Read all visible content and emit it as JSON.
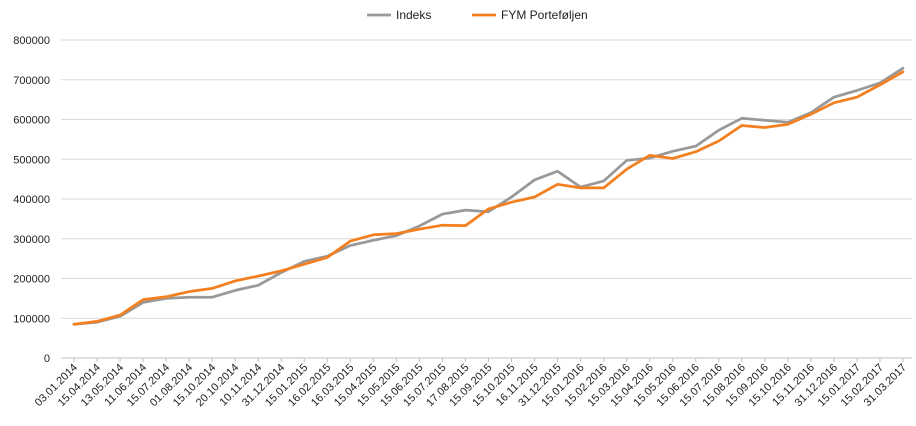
{
  "chart_data": {
    "type": "line",
    "title": "",
    "xlabel": "",
    "ylabel": "",
    "ylim": [
      0,
      800000
    ],
    "yticks": [
      "0",
      "100000",
      "200000",
      "300000",
      "400000",
      "500000",
      "600000",
      "700000",
      "800000"
    ],
    "grid": "horizontal",
    "legend_position": "top",
    "categories": [
      "03.01.2014",
      "15.04.2014",
      "13.05.2014",
      "11.06.2014",
      "15.07.2014",
      "01.08.2014",
      "15.10.2014",
      "20.10.2014",
      "10.11.2014",
      "31.12.2014",
      "15.01.2015",
      "16.02.2015",
      "16.03.2015",
      "15.04.2015",
      "15.05.2015",
      "15.06.2015",
      "15.07.2015",
      "17.08.2015",
      "15.09.2015",
      "15.10.2015",
      "16.11.2015",
      "31.12.2015",
      "15.01.2016",
      "15.02.2016",
      "15.03.2016",
      "15.04.2016",
      "15.05.2016",
      "15.06.2016",
      "15.07.2016",
      "15.08.2016",
      "15.09.2016",
      "15.10.2016",
      "15.11.2016",
      "31.12.2016",
      "15.01.2017",
      "15.02.2017",
      "31.03.2017"
    ],
    "series": [
      {
        "name": "Indeks",
        "color": "#999999",
        "values": [
          85000,
          90000,
          105000,
          140000,
          150000,
          153000,
          153000,
          170000,
          183000,
          215000,
          243000,
          256000,
          283000,
          296000,
          308000,
          332000,
          362000,
          372000,
          368000,
          405000,
          448000,
          470000,
          430000,
          445000,
          497000,
          503000,
          520000,
          533000,
          573000,
          603000,
          598000,
          593000,
          617000,
          656000,
          673000,
          692000,
          729000
        ]
      },
      {
        "name": "FYM Porteføljen",
        "color": "#f47f1f",
        "values": [
          85000,
          92000,
          108000,
          147000,
          154000,
          167000,
          175000,
          194000,
          206000,
          219000,
          236000,
          253000,
          294000,
          310000,
          313000,
          324000,
          334000,
          333000,
          375000,
          392000,
          405000,
          437000,
          428000,
          428000,
          475000,
          510000,
          502000,
          519000,
          546000,
          585000,
          580000,
          588000,
          613000,
          642000,
          656000,
          687000,
          720000
        ]
      }
    ]
  }
}
